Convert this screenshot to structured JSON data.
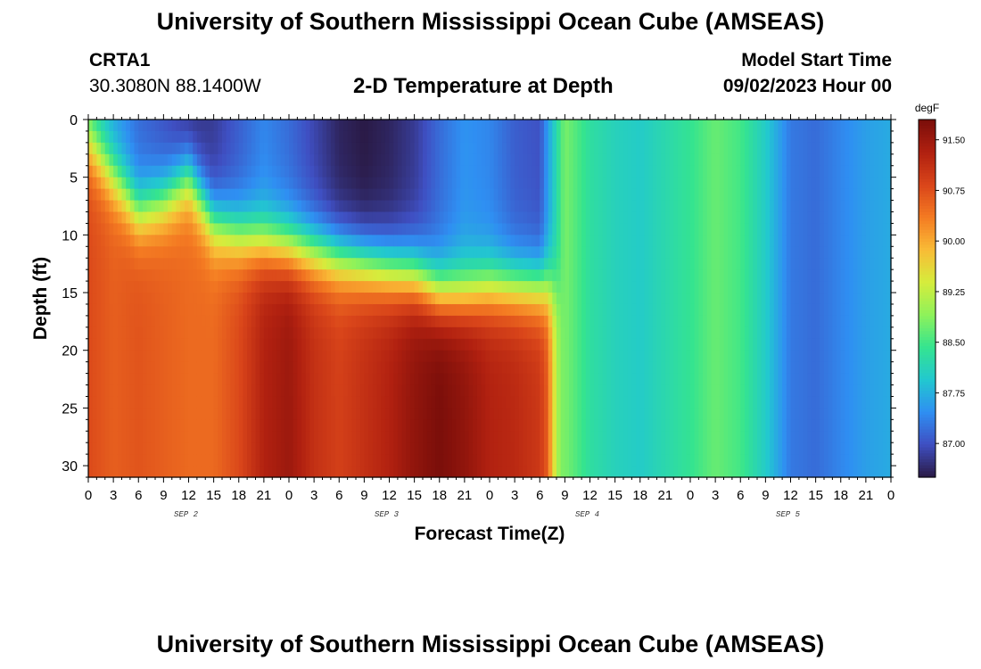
{
  "header": {
    "title": "University of Southern Mississippi Ocean Cube (AMSEAS)",
    "station_id": "CRTA1",
    "station_coords": "30.3080N  88.1400W",
    "plot_title": "2-D Temperature at Depth",
    "model_start_label": "Model Start Time",
    "model_start_value": "09/02/2023 Hour 00"
  },
  "footer": {
    "title": "University of Southern Mississippi Ocean Cube (AMSEAS)"
  },
  "colors": {
    "colormap": [
      "#2a1a45",
      "#3f4fc2",
      "#2f8ff2",
      "#22c8cf",
      "#35e48f",
      "#8ff25a",
      "#d6ec3c",
      "#f9bb36",
      "#f47a22",
      "#d9451a",
      "#b02010",
      "#7a0e0a"
    ]
  },
  "chart_data": {
    "type": "heatmap",
    "xlabel": "Forecast Time(Z)",
    "ylabel": "Depth (ft)",
    "x_range_hours": [
      0,
      96
    ],
    "ylim": [
      0,
      31
    ],
    "y_inverted": true,
    "x_tick_labels": [
      "0",
      "3",
      "6",
      "9",
      "12",
      "15",
      "18",
      "21",
      "0",
      "3",
      "6",
      "9",
      "12",
      "15",
      "18",
      "21",
      "0",
      "3",
      "6",
      "9",
      "12",
      "15",
      "18",
      "21",
      "0",
      "3",
      "6",
      "9",
      "12",
      "15",
      "18",
      "21",
      "0"
    ],
    "day_labels": [
      "SEP 2",
      "SEP 3",
      "SEP 4",
      "SEP 5"
    ],
    "y_ticks": [
      0,
      5,
      10,
      15,
      20,
      25,
      30
    ],
    "colorbar": {
      "unit": "degF",
      "range": [
        86.5,
        91.8
      ],
      "tick_values": [
        87.0,
        87.75,
        88.5,
        89.25,
        90.0,
        90.75,
        91.5
      ],
      "tick_labels": [
        "87.00",
        "87.75",
        "88.50",
        "89.25",
        "90.00",
        "90.75",
        "91.50"
      ]
    },
    "surface_temperature_degF": [
      [
        0,
        88.2
      ],
      [
        3,
        87.6
      ],
      [
        6,
        87.2
      ],
      [
        9,
        87.0
      ],
      [
        12,
        86.7
      ],
      [
        15,
        86.8
      ],
      [
        18,
        87.1
      ],
      [
        21,
        87.4
      ],
      [
        24,
        87.2
      ],
      [
        27,
        86.9
      ],
      [
        30,
        86.6
      ],
      [
        33,
        86.5
      ],
      [
        36,
        86.6
      ],
      [
        39,
        86.8
      ],
      [
        42,
        87.2
      ],
      [
        45,
        87.5
      ],
      [
        48,
        87.4
      ],
      [
        51,
        87.1
      ],
      [
        54,
        87.0
      ],
      [
        57,
        88.8
      ],
      [
        60,
        88.3
      ],
      [
        63,
        88.1
      ],
      [
        66,
        88.0
      ],
      [
        69,
        88.2
      ],
      [
        72,
        88.4
      ],
      [
        75,
        88.7
      ],
      [
        78,
        88.5
      ],
      [
        81,
        88.0
      ],
      [
        84,
        87.3
      ],
      [
        87,
        87.2
      ],
      [
        90,
        87.4
      ],
      [
        93,
        87.6
      ],
      [
        96,
        87.7
      ]
    ],
    "mixed_layer_depth_ft": [
      [
        0,
        2
      ],
      [
        3,
        5
      ],
      [
        6,
        8
      ],
      [
        9,
        7
      ],
      [
        12,
        5
      ],
      [
        15,
        9
      ],
      [
        18,
        10
      ],
      [
        21,
        10.5
      ],
      [
        24,
        11
      ],
      [
        27,
        11.5
      ],
      [
        30,
        12
      ],
      [
        33,
        12.5
      ],
      [
        36,
        13
      ],
      [
        39,
        13.5
      ],
      [
        42,
        15
      ],
      [
        45,
        15
      ],
      [
        48,
        14.5
      ],
      [
        51,
        14.5
      ],
      [
        54,
        14.5
      ],
      [
        57,
        14.5
      ]
    ],
    "bottom_temperature_degF": [
      [
        0,
        90.8
      ],
      [
        3,
        90.6
      ],
      [
        6,
        90.7
      ],
      [
        9,
        90.6
      ],
      [
        12,
        90.5
      ],
      [
        15,
        90.5
      ],
      [
        18,
        90.8
      ],
      [
        21,
        91.3
      ],
      [
        24,
        91.5
      ],
      [
        27,
        91.1
      ],
      [
        30,
        90.9
      ],
      [
        33,
        91.1
      ],
      [
        36,
        91.3
      ],
      [
        39,
        91.6
      ],
      [
        42,
        91.8
      ],
      [
        45,
        91.6
      ],
      [
        48,
        91.3
      ],
      [
        51,
        91.2
      ],
      [
        54,
        91.0
      ],
      [
        57,
        89.8
      ]
    ],
    "mixing_time_hours": 57
  }
}
